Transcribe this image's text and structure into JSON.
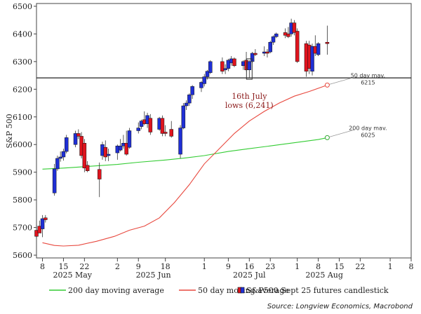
{
  "chart_data": {
    "type": "candlestick",
    "ylabel": "S&P 500",
    "ylim": [
      5590,
      6510
    ],
    "yticks": [
      5600,
      5700,
      5800,
      5900,
      6000,
      6100,
      6200,
      6300,
      6400,
      6500
    ],
    "ytick_labels": [
      "5600",
      "5700",
      "5800",
      "5900",
      "6000",
      "6100",
      "6200",
      "6300",
      "6400",
      "6500"
    ],
    "xlim": [
      "2025-05-06",
      "2025-09-08"
    ],
    "xticks": [
      "2025-05-08",
      "2025-05-15",
      "2025-05-22",
      "2025-06-02",
      "2025-06-09",
      "2025-06-18",
      "2025-07-01",
      "2025-07-09",
      "2025-07-16",
      "2025-07-23",
      "2025-08-01",
      "2025-08-08",
      "2025-08-15",
      "2025-08-22",
      "2025-09-01",
      "2025-09-08"
    ],
    "xtick_labels": [
      "8",
      "15",
      "22",
      "2",
      "9",
      "18",
      "1",
      "9",
      "16",
      "23",
      "1",
      "8",
      "15",
      "22",
      "1",
      "8"
    ],
    "month_labels": [
      {
        "text": "2025 May",
        "date": "2025-05-18"
      },
      {
        "text": "2025 Jun",
        "date": "2025-06-14"
      },
      {
        "text": "2025 Jul",
        "date": "2025-07-16"
      },
      {
        "text": "2025 Aug",
        "date": "2025-08-10"
      }
    ],
    "candles": [
      {
        "date": "2025-05-06",
        "o": 5690,
        "h": 5710,
        "l": 5660,
        "c": 5668
      },
      {
        "date": "2025-05-07",
        "o": 5705,
        "h": 5725,
        "l": 5685,
        "c": 5680
      },
      {
        "date": "2025-05-08",
        "o": 5695,
        "h": 5745,
        "l": 5665,
        "c": 5732
      },
      {
        "date": "2025-05-09",
        "o": 5735,
        "h": 5745,
        "l": 5718,
        "c": 5728
      },
      {
        "date": "2025-05-12",
        "o": 5825,
        "h": 5930,
        "l": 5815,
        "c": 5912
      },
      {
        "date": "2025-05-13",
        "o": 5912,
        "h": 5960,
        "l": 5905,
        "c": 5950
      },
      {
        "date": "2025-05-14",
        "o": 5950,
        "h": 5975,
        "l": 5938,
        "c": 5955
      },
      {
        "date": "2025-05-15",
        "o": 5955,
        "h": 5985,
        "l": 5942,
        "c": 5975
      },
      {
        "date": "2025-05-16",
        "o": 5975,
        "h": 6035,
        "l": 5968,
        "c": 6025
      },
      {
        "date": "2025-05-19",
        "o": 6000,
        "h": 6050,
        "l": 5990,
        "c": 6040
      },
      {
        "date": "2025-05-20",
        "o": 6040,
        "h": 6055,
        "l": 6020,
        "c": 6030
      },
      {
        "date": "2025-05-21",
        "o": 6030,
        "h": 6045,
        "l": 5950,
        "c": 5960
      },
      {
        "date": "2025-05-22",
        "o": 6005,
        "h": 6020,
        "l": 5900,
        "c": 5915
      },
      {
        "date": "2025-05-23",
        "o": 5925,
        "h": 5940,
        "l": 5900,
        "c": 5905
      },
      {
        "date": "2025-05-27",
        "o": 5910,
        "h": 5935,
        "l": 5810,
        "c": 5875
      },
      {
        "date": "2025-05-28",
        "o": 5960,
        "h": 6010,
        "l": 5945,
        "c": 6000
      },
      {
        "date": "2025-05-29",
        "o": 5990,
        "h": 6015,
        "l": 5940,
        "c": 5955
      },
      {
        "date": "2025-05-30",
        "o": 5960,
        "h": 5985,
        "l": 5940,
        "c": 5965
      },
      {
        "date": "2025-06-02",
        "o": 5970,
        "h": 6000,
        "l": 5945,
        "c": 5995
      },
      {
        "date": "2025-06-03",
        "o": 5980,
        "h": 6020,
        "l": 5975,
        "c": 5995
      },
      {
        "date": "2025-06-04",
        "o": 5995,
        "h": 6035,
        "l": 5985,
        "c": 6005
      },
      {
        "date": "2025-06-05",
        "o": 6005,
        "h": 6050,
        "l": 5960,
        "c": 5965
      },
      {
        "date": "2025-06-06",
        "o": 5990,
        "h": 6060,
        "l": 5985,
        "c": 6050
      },
      {
        "date": "2025-06-09",
        "o": 6050,
        "h": 6080,
        "l": 6040,
        "c": 6060
      },
      {
        "date": "2025-06-10",
        "o": 6065,
        "h": 6090,
        "l": 6055,
        "c": 6085
      },
      {
        "date": "2025-06-11",
        "o": 6090,
        "h": 6120,
        "l": 6070,
        "c": 6075
      },
      {
        "date": "2025-06-12",
        "o": 6075,
        "h": 6115,
        "l": 6060,
        "c": 6105
      },
      {
        "date": "2025-06-13",
        "o": 6095,
        "h": 6110,
        "l": 6035,
        "c": 6045
      },
      {
        "date": "2025-06-16",
        "o": 6055,
        "h": 6100,
        "l": 6050,
        "c": 6095
      },
      {
        "date": "2025-06-17",
        "o": 6095,
        "h": 6105,
        "l": 6030,
        "c": 6040
      },
      {
        "date": "2025-06-18",
        "o": 6045,
        "h": 6070,
        "l": 6030,
        "c": 6040
      },
      {
        "date": "2025-06-20",
        "o": 6055,
        "h": 6085,
        "l": 6025,
        "c": 6030
      },
      {
        "date": "2025-06-23",
        "o": 5965,
        "h": 6070,
        "l": 5950,
        "c": 6060
      },
      {
        "date": "2025-06-24",
        "o": 6060,
        "h": 6150,
        "l": 6055,
        "c": 6140
      },
      {
        "date": "2025-06-25",
        "o": 6140,
        "h": 6160,
        "l": 6125,
        "c": 6150
      },
      {
        "date": "2025-06-26",
        "o": 6150,
        "h": 6185,
        "l": 6140,
        "c": 6180
      },
      {
        "date": "2025-06-27",
        "o": 6180,
        "h": 6215,
        "l": 6165,
        "c": 6210
      },
      {
        "date": "2025-06-30",
        "o": 6205,
        "h": 6230,
        "l": 6190,
        "c": 6225
      },
      {
        "date": "2025-07-01",
        "o": 6220,
        "h": 6255,
        "l": 6210,
        "c": 6245
      },
      {
        "date": "2025-07-02",
        "o": 6245,
        "h": 6270,
        "l": 6235,
        "c": 6265
      },
      {
        "date": "2025-07-03",
        "o": 6260,
        "h": 6305,
        "l": 6255,
        "c": 6300
      },
      {
        "date": "2025-07-07",
        "o": 6300,
        "h": 6315,
        "l": 6255,
        "c": 6265
      },
      {
        "date": "2025-07-08",
        "o": 6270,
        "h": 6290,
        "l": 6255,
        "c": 6275
      },
      {
        "date": "2025-07-09",
        "o": 6275,
        "h": 6310,
        "l": 6265,
        "c": 6305
      },
      {
        "date": "2025-07-10",
        "o": 6295,
        "h": 6320,
        "l": 6285,
        "c": 6310
      },
      {
        "date": "2025-07-11",
        "o": 6310,
        "h": 6315,
        "l": 6280,
        "c": 6285
      },
      {
        "date": "2025-07-14",
        "o": 6285,
        "h": 6305,
        "l": 6270,
        "c": 6300
      },
      {
        "date": "2025-07-15",
        "o": 6305,
        "h": 6335,
        "l": 6265,
        "c": 6270
      },
      {
        "date": "2025-07-16",
        "o": 6270,
        "h": 6305,
        "l": 6241,
        "c": 6300
      },
      {
        "date": "2025-07-17",
        "o": 6300,
        "h": 6335,
        "l": 6295,
        "c": 6330
      },
      {
        "date": "2025-07-18",
        "o": 6330,
        "h": 6345,
        "l": 6320,
        "c": 6325
      },
      {
        "date": "2025-07-21",
        "o": 6330,
        "h": 6355,
        "l": 6320,
        "c": 6335
      },
      {
        "date": "2025-07-22",
        "o": 6335,
        "h": 6345,
        "l": 6315,
        "c": 6330
      },
      {
        "date": "2025-07-23",
        "o": 6335,
        "h": 6375,
        "l": 6330,
        "c": 6370
      },
      {
        "date": "2025-07-24",
        "o": 6370,
        "h": 6395,
        "l": 6360,
        "c": 6390
      },
      {
        "date": "2025-07-25",
        "o": 6390,
        "h": 6405,
        "l": 6385,
        "c": 6400
      },
      {
        "date": "2025-07-28",
        "o": 6405,
        "h": 6420,
        "l": 6385,
        "c": 6395
      },
      {
        "date": "2025-07-29",
        "o": 6400,
        "h": 6425,
        "l": 6385,
        "c": 6390
      },
      {
        "date": "2025-07-30",
        "o": 6400,
        "h": 6455,
        "l": 6390,
        "c": 6440
      },
      {
        "date": "2025-07-31",
        "o": 6440,
        "h": 6450,
        "l": 6395,
        "c": 6405
      },
      {
        "date": "2025-08-01",
        "o": 6410,
        "h": 6420,
        "l": 6295,
        "c": 6300
      },
      {
        "date": "2025-08-04",
        "o": 6365,
        "h": 6375,
        "l": 6245,
        "c": 6265
      },
      {
        "date": "2025-08-05",
        "o": 6360,
        "h": 6375,
        "l": 6255,
        "c": 6275
      },
      {
        "date": "2025-08-06",
        "o": 6265,
        "h": 6365,
        "l": 6250,
        "c": 6355
      },
      {
        "date": "2025-08-07",
        "o": 6355,
        "h": 6395,
        "l": 6320,
        "c": 6330
      },
      {
        "date": "2025-08-08",
        "o": 6325,
        "h": 6370,
        "l": 6320,
        "c": 6365
      },
      {
        "date": "2025-08-11",
        "o": 6370,
        "h": 6430,
        "l": 6325,
        "c": 6365
      }
    ],
    "series": [
      {
        "name": "200 day moving average",
        "color": "#33cc33",
        "points": [
          [
            "2025-05-08",
            5911
          ],
          [
            "2025-05-15",
            5915
          ],
          [
            "2025-05-22",
            5920
          ],
          [
            "2025-06-02",
            5928
          ],
          [
            "2025-06-09",
            5936
          ],
          [
            "2025-06-18",
            5944
          ],
          [
            "2025-06-25",
            5952
          ],
          [
            "2025-07-01",
            5960
          ],
          [
            "2025-07-09",
            5975
          ],
          [
            "2025-07-16",
            5985
          ],
          [
            "2025-07-23",
            5995
          ],
          [
            "2025-08-01",
            6008
          ],
          [
            "2025-08-08",
            6018
          ],
          [
            "2025-08-11",
            6025
          ]
        ]
      },
      {
        "name": "50 day moving average",
        "color": "#e8493f",
        "points": [
          [
            "2025-05-08",
            5645
          ],
          [
            "2025-05-12",
            5635
          ],
          [
            "2025-05-15",
            5633
          ],
          [
            "2025-05-20",
            5636
          ],
          [
            "2025-05-26",
            5650
          ],
          [
            "2025-06-01",
            5668
          ],
          [
            "2025-06-06",
            5690
          ],
          [
            "2025-06-11",
            5705
          ],
          [
            "2025-06-16",
            5735
          ],
          [
            "2025-06-21",
            5790
          ],
          [
            "2025-06-26",
            5855
          ],
          [
            "2025-07-01",
            5930
          ],
          [
            "2025-07-06",
            5985
          ],
          [
            "2025-07-11",
            6040
          ],
          [
            "2025-07-16",
            6085
          ],
          [
            "2025-07-21",
            6120
          ],
          [
            "2025-07-26",
            6150
          ],
          [
            "2025-07-31",
            6175
          ],
          [
            "2025-08-05",
            6192
          ],
          [
            "2025-08-11",
            6215
          ]
        ]
      },
      {
        "name": "S&P500 Sept 25 futures candlestick",
        "up_color": "#1f2fd6",
        "down_color": "#e0141e"
      }
    ],
    "reference_line": {
      "value": 6241
    },
    "highlight_date": "2025-07-16",
    "annotations": [
      {
        "id": "july-low",
        "lines": [
          "16th July",
          "lows (6,241)"
        ]
      },
      {
        "id": "ma50-end",
        "lines": [
          "50 day mav.",
          "6215"
        ],
        "date": "2025-08-11",
        "value": 6215
      },
      {
        "id": "ma200-end",
        "lines": [
          "200 day mav.",
          "6025"
        ],
        "date": "2025-08-11",
        "value": 6025
      }
    ],
    "legend": {
      "position": "bottom",
      "items": [
        "200 day moving average",
        "50 day moving average",
        "S&P500 Sept 25 futures candlestick"
      ]
    },
    "grid": false
  },
  "source": "Source: Longview Economics, Macrobond"
}
